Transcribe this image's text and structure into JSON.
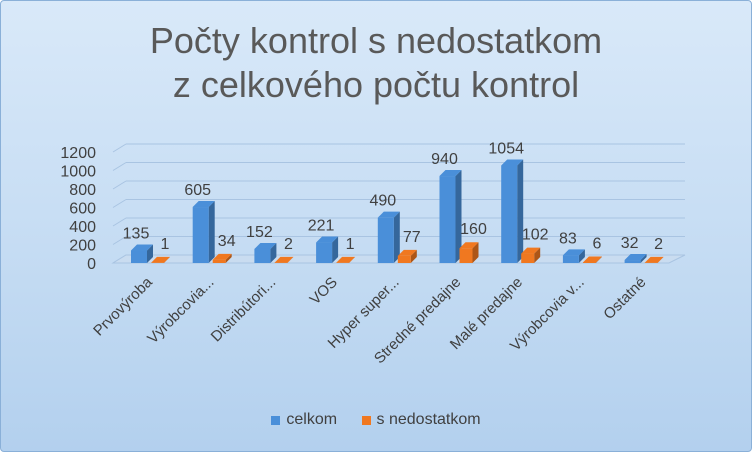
{
  "title_line1": "Počty kontrol s nedostatkom",
  "title_line2": "z celkového počtu kontrol",
  "colors": {
    "series1": "#4a8fd9",
    "series2": "#f07820"
  },
  "chart_data": {
    "type": "bar",
    "title": "Počty kontrol s nedostatkom z celkového počtu kontrol",
    "categories": [
      "Prvovýroba",
      "Výrobcovia...",
      "Distribútori...",
      "VOS",
      "Hyper super...",
      "Stredné predajne",
      "Malé predajne",
      "Výrobcovia v...",
      "Ostatné"
    ],
    "series": [
      {
        "name": "celkom",
        "values": [
          135,
          605,
          152,
          221,
          490,
          940,
          1054,
          83,
          32
        ]
      },
      {
        "name": "s nedostatkom",
        "values": [
          1,
          34,
          2,
          1,
          77,
          160,
          102,
          6,
          2
        ]
      }
    ],
    "yticks": [
      "0",
      "200",
      "400",
      "600",
      "800",
      "1000",
      "1200"
    ],
    "ylim": [
      0,
      1200
    ],
    "legend_position": "bottom",
    "grid": true
  }
}
